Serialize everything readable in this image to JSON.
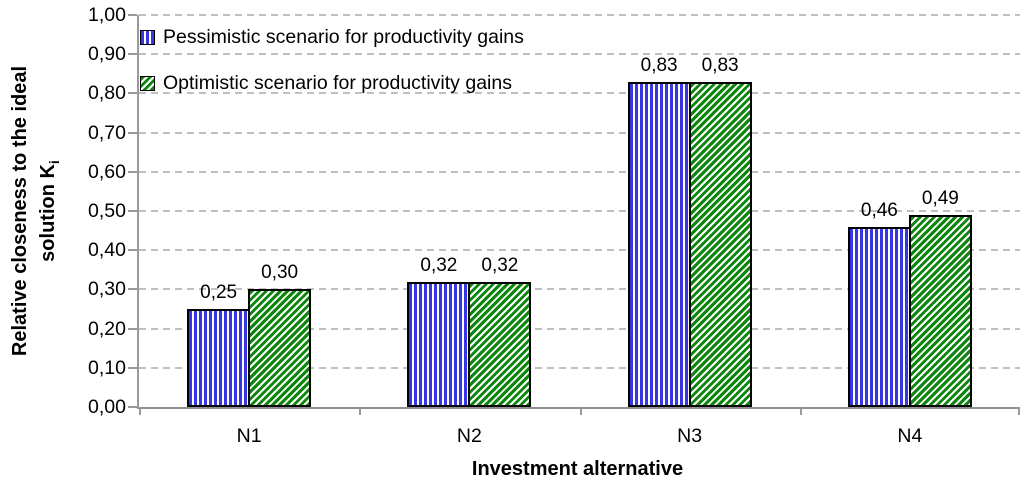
{
  "chart_data": {
    "type": "bar",
    "categories": [
      "N1",
      "N2",
      "N3",
      "N4"
    ],
    "series": [
      {
        "name": "Pessimistic scenario for productivity gains",
        "values": [
          0.25,
          0.32,
          0.83,
          0.46
        ],
        "labels": [
          "0,25",
          "0,32",
          "0,83",
          "0,46"
        ],
        "color": "#3636e2",
        "pattern": "vertical-stripes"
      },
      {
        "name": "Optimistic scenario for productivity gains",
        "values": [
          0.3,
          0.32,
          0.83,
          0.49
        ],
        "labels": [
          "0,30",
          "0,32",
          "0,83",
          "0,49"
        ],
        "color": "#0d860d",
        "pattern": "diagonal-stripes"
      }
    ],
    "xlabel": "Investment alternative",
    "ylabel_line1": "Relative closeness to the ideal",
    "ylabel_line2_prefix": "solution K",
    "ylabel_line2_sub": "i",
    "ylim": [
      0,
      1
    ],
    "y_ticks": [
      "0,00",
      "0,10",
      "0,20",
      "0,30",
      "0,40",
      "0,50",
      "0,60",
      "0,70",
      "0,80",
      "0,90",
      "1,00"
    ],
    "grid": "dashed horizontal",
    "legend_position": "top-left inside plot",
    "colors": {
      "grid": "#c0c0c0",
      "axis": "#9a9a9a",
      "bar_border": "#000000",
      "background": "#ffffff"
    }
  }
}
